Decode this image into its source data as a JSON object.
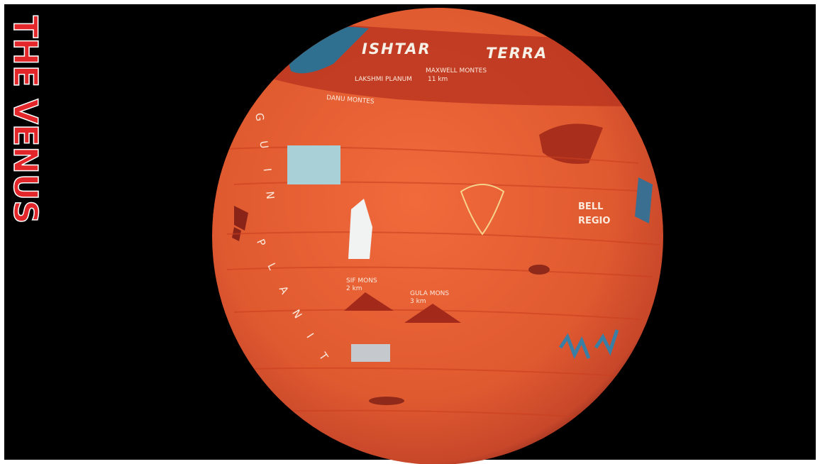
{
  "title": "THE VENUS",
  "labels": {
    "ishtar": "ISHTAR",
    "terra": "TERRA",
    "lakshmi_planum": "LAKSHMI PLANUM",
    "maxwell_montes": "MAXWELL MONTES",
    "maxwell_height": "11 km",
    "danu_montes": "DANU MONTES",
    "guinevere": "GUINEVERE",
    "planitia": "PLANITIA",
    "bell": "BELL",
    "regio": "REGIO",
    "sif_mons": "SIF MONS",
    "sif_height": "2 km",
    "gula_mons": "GULA MONS",
    "gula_height": "3 km"
  }
}
